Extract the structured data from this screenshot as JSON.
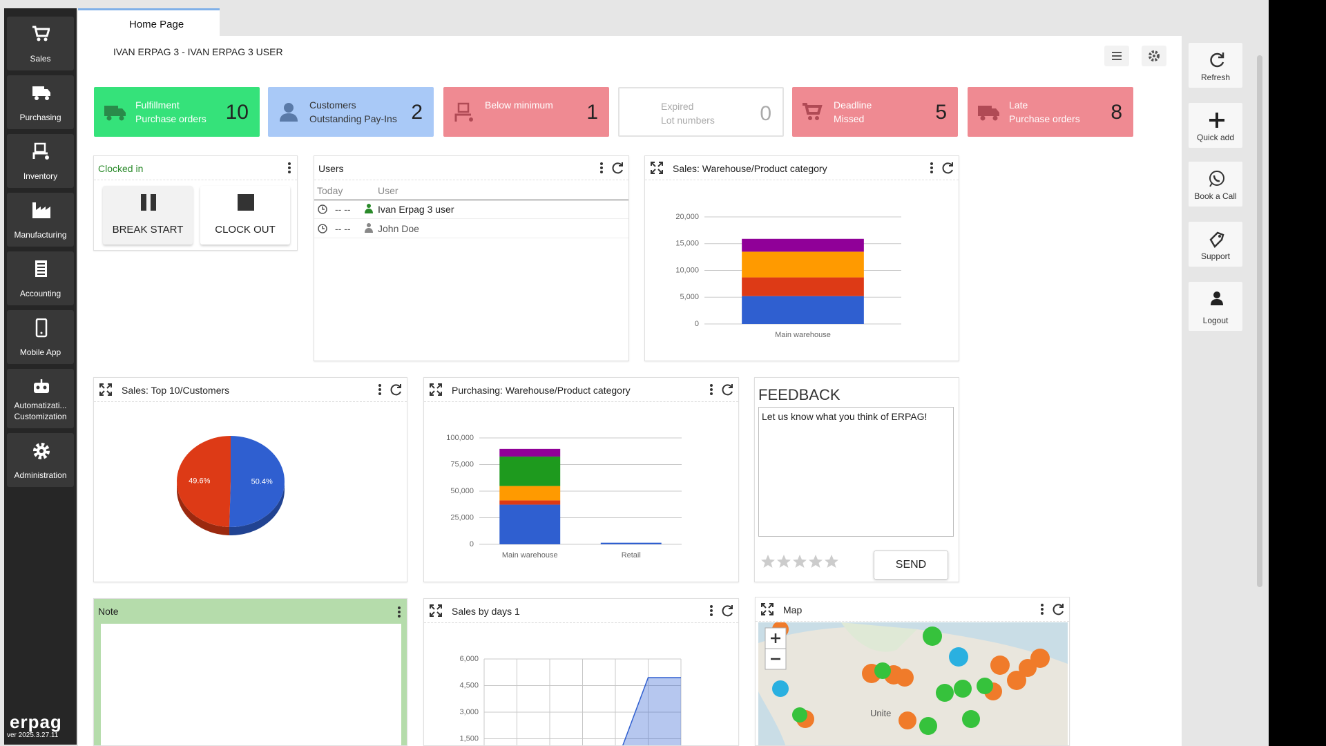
{
  "sidebar": {
    "items": [
      {
        "label": "Sales"
      },
      {
        "label": "Purchasing"
      },
      {
        "label": "Inventory"
      },
      {
        "label": "Manufacturing"
      },
      {
        "label": "Accounting"
      },
      {
        "label": "Mobile App"
      },
      {
        "label": "Automatizati...",
        "sublabel": "Customization"
      },
      {
        "label": "Administration"
      }
    ],
    "logo": "erpag",
    "version": "ver 2025.3.27.11"
  },
  "tab": {
    "title": "Home Page"
  },
  "header": {
    "title": "IVAN ERPAG 3 - IVAN ERPAG 3 USER"
  },
  "kpis": [
    {
      "line1": "Fulfillment",
      "line2": "Purchase orders",
      "value": 10,
      "color": "#35e27a"
    },
    {
      "line1": "Customers",
      "line2": "Outstanding Pay-Ins",
      "value": 2,
      "color": "#a9c9f7"
    },
    {
      "line1": "Below minimum",
      "value": 1,
      "color": "#ef8a92"
    },
    {
      "line1": "Expired",
      "line2": "Lot numbers",
      "value": 0,
      "color": "#ffffff"
    },
    {
      "line1": "Deadline",
      "line2": "Missed",
      "value": 5,
      "color": "#ef8a92"
    },
    {
      "line1": "Late",
      "line2": "Purchase orders",
      "value": 8,
      "color": "#ef8a92"
    }
  ],
  "right_actions": [
    "Refresh",
    "Quick add",
    "Book a Call",
    "Support",
    "Logout"
  ],
  "clocked_in": {
    "title": "Clocked in",
    "buttons": [
      "BREAK START",
      "CLOCK OUT"
    ]
  },
  "users": {
    "title": "Users",
    "columns": [
      "Today",
      "User"
    ],
    "rows": [
      [
        "-- --",
        "Ivan Erpag 3 user"
      ],
      [
        "-- --",
        "John Doe"
      ]
    ]
  },
  "sales_warehouse": {
    "title": "Sales: Warehouse/Product category",
    "chart_data": {
      "type": "bar",
      "stacked": true,
      "categories": [
        "Main warehouse"
      ],
      "series": [
        {
          "color": "#2f5fd0",
          "values": [
            5200
          ]
        },
        {
          "color": "#dd3a16",
          "values": [
            3500
          ]
        },
        {
          "color": "#ff9a00",
          "values": [
            4800
          ]
        },
        {
          "color": "#900098",
          "values": [
            2400
          ]
        }
      ],
      "ylim": [
        0,
        20000
      ],
      "yticks": [
        0,
        {
          "value": 5000,
          "label": "5,000"
        },
        {
          "value": 10000,
          "label": "10,000"
        },
        {
          "value": 15000,
          "label": "15,000"
        },
        {
          "value": 20000,
          "label": "20,000"
        }
      ],
      "grid": true
    }
  },
  "sales_top10": {
    "title": "Sales: Top 10/Customers",
    "chart_data": {
      "type": "pie",
      "values": [
        50.4,
        49.6
      ],
      "value_labels": [
        "50.4%",
        "49.6%"
      ],
      "colors": [
        "#2f5fd0",
        "#dd3a16"
      ]
    }
  },
  "purchasing_warehouse": {
    "title": "Purchasing: Warehouse/Product category",
    "chart_data": {
      "type": "bar",
      "stacked": true,
      "categories": [
        "Main warehouse",
        "Retail"
      ],
      "series": [
        {
          "color": "#2f5fd0",
          "values": [
            37300,
            1500
          ]
        },
        {
          "color": "#dd3a16",
          "values": [
            4000,
            0
          ]
        },
        {
          "color": "#ff9a00",
          "values": [
            13500,
            0
          ]
        },
        {
          "color": "#1e9a1e",
          "values": [
            27700,
            0
          ]
        },
        {
          "color": "#900098",
          "values": [
            7200,
            0
          ]
        }
      ],
      "ylim": [
        0,
        100000
      ],
      "yticks": [
        0,
        {
          "value": 25000,
          "label": "25,000"
        },
        {
          "value": 50000,
          "label": "50,000"
        },
        {
          "value": 75000,
          "label": "75,000"
        },
        {
          "value": 100000,
          "label": "100,000"
        }
      ],
      "grid": true
    }
  },
  "feedback": {
    "title": "FEEDBACK",
    "placeholder": "Let us know what you think of ERPAG!",
    "button": "SEND"
  },
  "note": {
    "title": "Note"
  },
  "sales_by_days": {
    "title": "Sales by days 1",
    "chart_data": {
      "type": "area",
      "values": [
        0,
        0,
        0,
        0,
        0,
        4950,
        4950
      ],
      "color": "#2f5fd0",
      "ylim": [
        0,
        6000
      ],
      "yticks": [
        {
          "value": 1500,
          "label": "1,500"
        },
        {
          "value": 3000,
          "label": "3,000"
        },
        {
          "value": 4500,
          "label": "4,500"
        },
        {
          "value": 6000,
          "label": "6,000"
        }
      ],
      "grid": true
    }
  },
  "map": {
    "title": "Map",
    "label": "Unite"
  }
}
